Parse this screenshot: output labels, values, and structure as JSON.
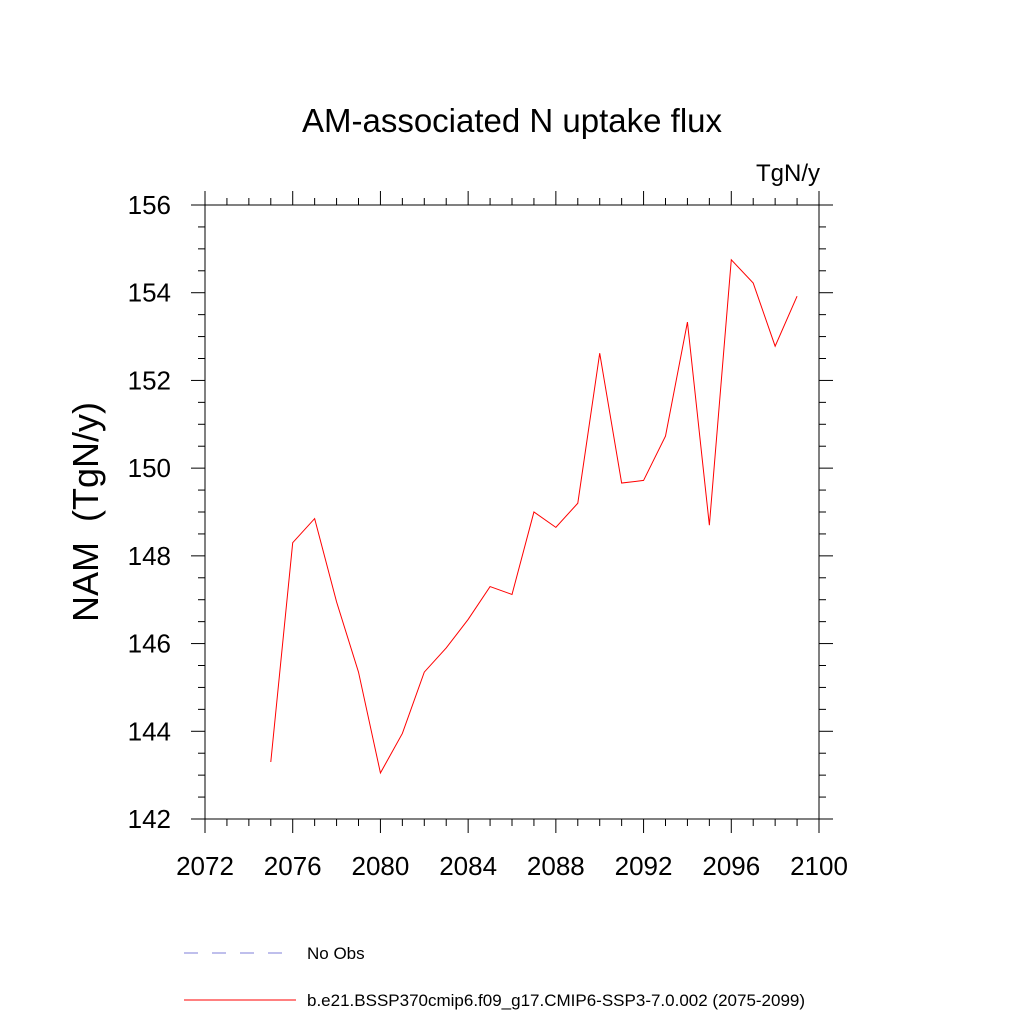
{
  "chart_data": {
    "type": "line",
    "title": "AM-associated N uptake flux",
    "units": "TgN/y",
    "xlabel": "",
    "ylabel": "NAM  (TgN/y)",
    "xlim": [
      2072,
      2100
    ],
    "ylim": [
      142,
      156
    ],
    "x_ticks": [
      2072,
      2076,
      2080,
      2084,
      2088,
      2092,
      2096,
      2100
    ],
    "y_ticks": [
      142,
      144,
      146,
      148,
      150,
      152,
      154,
      156
    ],
    "grid": false,
    "legend_position": "bottom",
    "series": [
      {
        "name": "b.e21.BSSP370cmip6.f09_g17.CMIP6-SSP3-7.0.002 (2075-2099)",
        "color": "#ff0000",
        "dash": "solid",
        "x": [
          2075,
          2076,
          2077,
          2078,
          2079,
          2080,
          2081,
          2082,
          2083,
          2084,
          2085,
          2086,
          2087,
          2088,
          2089,
          2090,
          2091,
          2092,
          2093,
          2094,
          2095,
          2096,
          2097,
          2098,
          2099
        ],
        "y": [
          143.3,
          148.3,
          148.85,
          146.95,
          145.35,
          143.05,
          143.95,
          145.35,
          145.9,
          146.55,
          147.3,
          147.12,
          149.0,
          148.65,
          149.2,
          152.62,
          149.66,
          149.72,
          150.73,
          153.33,
          148.7,
          154.75,
          154.22,
          152.78,
          153.92
        ]
      }
    ],
    "legend": [
      {
        "label": "No Obs",
        "color": "#7f7fd8",
        "dash": "dashed"
      },
      {
        "label": "b.e21.BSSP370cmip6.f09_g17.CMIP6-SSP3-7.0.002 (2075-2099)",
        "color": "#ff0000",
        "dash": "solid"
      }
    ]
  }
}
